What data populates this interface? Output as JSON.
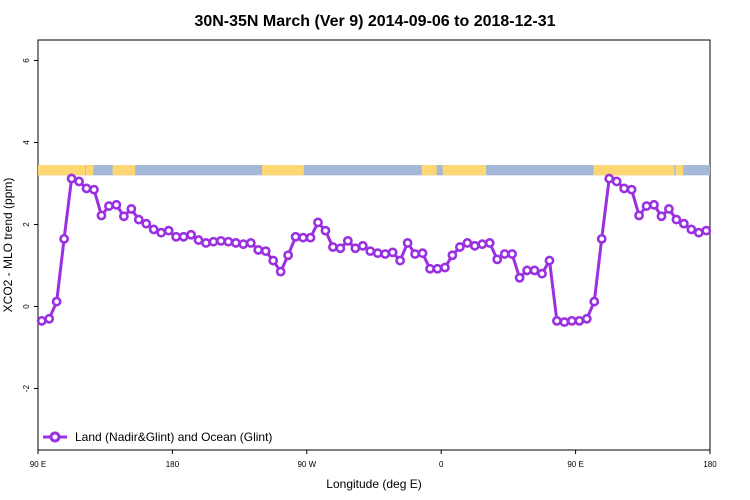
{
  "chart_data": {
    "type": "line",
    "title": "30N-35N March (Ver 9)   2014-09-06 to 2018-12-31",
    "xlabel": "Longitude (deg E)",
    "ylabel": "XCO2 - MLO trend (ppm)",
    "xlim": [
      90,
      540
    ],
    "ylim": [
      -3.5,
      6.5
    ],
    "x_ticks": [
      {
        "value": 90,
        "label": "90 E"
      },
      {
        "value": 180,
        "label": "180"
      },
      {
        "value": 270,
        "label": "90 W"
      },
      {
        "value": 360,
        "label": "0"
      },
      {
        "value": 450,
        "label": "90 E"
      },
      {
        "value": 540,
        "label": "180"
      }
    ],
    "y_ticks": [
      {
        "value": -2,
        "label": "-2"
      },
      {
        "value": 0,
        "label": "0"
      },
      {
        "value": 2,
        "label": "2"
      },
      {
        "value": 4,
        "label": "4"
      },
      {
        "value": 6,
        "label": "6"
      }
    ],
    "legend": {
      "position": "bottom-left",
      "entries": [
        {
          "label": "Land (Nadir&Glint) and Ocean (Glint)",
          "color": "#9b30e0"
        }
      ]
    },
    "land_ocean_strip": {
      "y_range": [
        3.2,
        3.45
      ],
      "ocean_color": "#a4b9d8",
      "land_color": "#fcd774",
      "land_lon_ranges": [
        [
          90,
          121.5
        ],
        [
          122,
          127
        ],
        [
          140,
          155
        ],
        [
          240,
          268
        ],
        [
          347,
          357
        ],
        [
          361,
          390
        ],
        [
          462,
          516
        ],
        [
          517,
          522
        ]
      ]
    },
    "series": [
      {
        "name": "Land (Nadir&Glint) and Ocean (Glint)",
        "color": "#9b30e0",
        "x": [
          92.5,
          97.5,
          102.5,
          107.5,
          112.5,
          117.5,
          122.5,
          127.5,
          132.5,
          137.5,
          142.5,
          147.5,
          152.5,
          157.5,
          162.5,
          167.5,
          172.5,
          177.5,
          182.5,
          187.5,
          192.5,
          197.5,
          202.5,
          207.5,
          212.5,
          217.5,
          222.5,
          227.5,
          232.5,
          237.5,
          242.5,
          247.5,
          252.5,
          257.5,
          262.5,
          267.5,
          272.5,
          277.5,
          282.5,
          287.5,
          292.5,
          297.5,
          302.5,
          307.5,
          312.5,
          317.5,
          322.5,
          327.5,
          332.5,
          337.5,
          342.5,
          347.5,
          352.5,
          357.5,
          362.5,
          367.5,
          372.5,
          377.5,
          382.5,
          387.5,
          392.5,
          397.5,
          402.5,
          407.5,
          412.5,
          417.5,
          422.5,
          427.5,
          432.5,
          437.5,
          442.5,
          447.5,
          452.5,
          457.5,
          462.5,
          467.5,
          472.5,
          477.5,
          482.5,
          487.5,
          492.5,
          497.5,
          502.5,
          507.5,
          512.5,
          517.5,
          522.5,
          527.5,
          532.5,
          537.5
        ],
        "y": [
          -0.35,
          -0.3,
          0.12,
          1.65,
          3.12,
          3.05,
          2.88,
          2.85,
          2.22,
          2.45,
          2.48,
          2.2,
          2.38,
          2.12,
          2.02,
          1.88,
          1.8,
          1.85,
          1.7,
          1.7,
          1.75,
          1.62,
          1.55,
          1.58,
          1.6,
          1.58,
          1.55,
          1.52,
          1.55,
          1.38,
          1.35,
          1.12,
          0.85,
          1.25,
          1.7,
          1.68,
          1.68,
          2.05,
          1.85,
          1.45,
          1.42,
          1.6,
          1.42,
          1.48,
          1.35,
          1.3,
          1.28,
          1.32,
          1.12,
          1.55,
          1.28,
          1.3,
          0.92,
          0.92,
          0.95,
          1.25,
          1.45,
          1.55,
          1.48,
          1.52,
          1.55,
          1.15,
          1.28,
          1.28,
          0.7,
          0.88,
          0.88,
          0.8,
          1.12,
          -0.35,
          -0.38,
          -0.35,
          -0.35,
          -0.3,
          0.12,
          1.65,
          3.12,
          3.05,
          2.88,
          2.85,
          2.22,
          2.45,
          2.48,
          2.2,
          2.38,
          2.12,
          2.02,
          1.88,
          1.8,
          1.85
        ]
      }
    ]
  }
}
